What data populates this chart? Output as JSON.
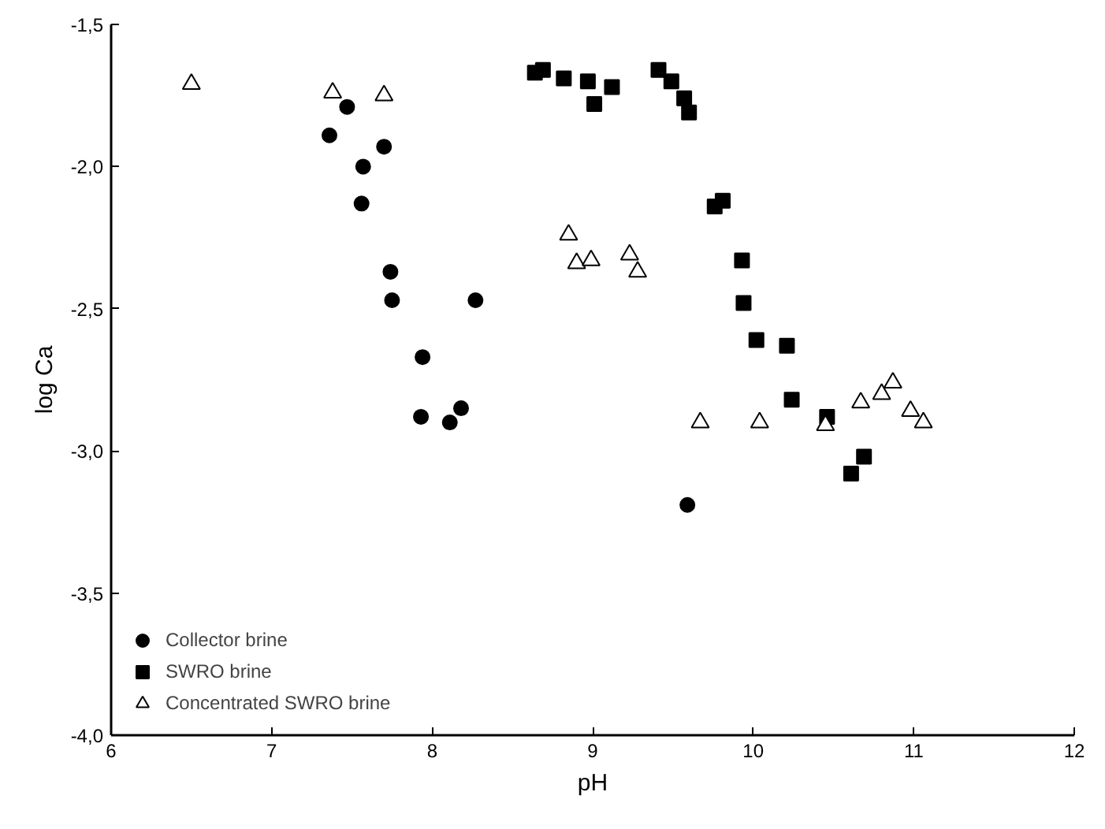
{
  "chart_data": {
    "type": "scatter",
    "xlabel": "pH",
    "ylabel": "log Ca",
    "xlim": [
      6,
      12
    ],
    "ylim": [
      -4.0,
      -1.5
    ],
    "xticks": [
      6,
      7,
      8,
      9,
      10,
      11,
      12
    ],
    "yticks": [
      {
        "value": -4.0,
        "label": "-4,0"
      },
      {
        "value": -3.5,
        "label": "-3,5"
      },
      {
        "value": -3.0,
        "label": "-3,0"
      },
      {
        "value": -2.5,
        "label": "-2,5"
      },
      {
        "value": -2.0,
        "label": "-2,0"
      },
      {
        "value": -1.5,
        "label": "-1,5"
      }
    ],
    "grid": false,
    "legend": "bottom left",
    "series": [
      {
        "name": "Collector brine",
        "color": "#000000",
        "marker": "circle",
        "x": [
          7.47,
          7.36,
          7.7,
          7.57,
          7.56,
          7.74,
          7.75,
          8.27,
          7.94,
          7.93,
          8.11,
          8.18,
          9.59
        ],
        "values": [
          -1.79,
          -1.89,
          -1.93,
          -2.0,
          -2.13,
          -2.37,
          -2.47,
          -2.47,
          -2.67,
          -2.88,
          -2.9,
          -2.85,
          -3.19
        ]
      },
      {
        "name": "SWRO brine",
        "color": "#000000",
        "marker": "square",
        "x": [
          8.64,
          8.69,
          8.82,
          8.97,
          9.12,
          9.01,
          9.41,
          9.49,
          9.57,
          9.6,
          9.81,
          9.76,
          9.93,
          9.94,
          10.02,
          10.21,
          10.24,
          10.46,
          10.69,
          10.61
        ],
        "values": [
          -1.67,
          -1.66,
          -1.69,
          -1.7,
          -1.72,
          -1.78,
          -1.66,
          -1.7,
          -1.76,
          -1.81,
          -2.12,
          -2.14,
          -2.33,
          -2.48,
          -2.61,
          -2.63,
          -2.82,
          -2.88,
          -3.02,
          -3.08
        ]
      },
      {
        "name": "Concentrated SWRO brine",
        "color": "#000000",
        "marker": "triangle",
        "x": [
          6.5,
          7.38,
          7.7,
          8.85,
          8.9,
          8.99,
          9.23,
          9.28,
          9.67,
          10.04,
          10.45,
          10.67,
          10.8,
          10.87,
          10.98,
          11.06
        ],
        "values": [
          -1.71,
          -1.74,
          -1.75,
          -2.24,
          -2.34,
          -2.33,
          -2.31,
          -2.37,
          -2.9,
          -2.9,
          -2.91,
          -2.83,
          -2.8,
          -2.76,
          -2.86,
          -2.9
        ]
      }
    ]
  }
}
